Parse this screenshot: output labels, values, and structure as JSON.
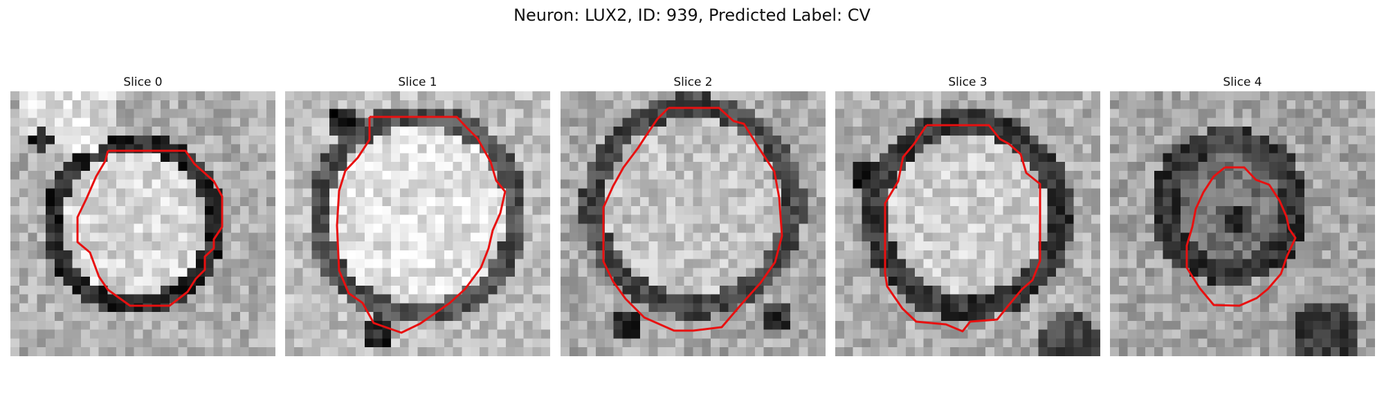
{
  "figure": {
    "title": "Neuron: LUX2, ID: 939, Predicted Label: CV"
  },
  "panels": [
    {
      "title": "Slice 0"
    },
    {
      "title": "Slice 1"
    },
    {
      "title": "Slice 2"
    },
    {
      "title": "Slice 3"
    },
    {
      "title": "Slice 4"
    }
  ],
  "contour_color": "#e81010",
  "image_colormap": "grayscale"
}
